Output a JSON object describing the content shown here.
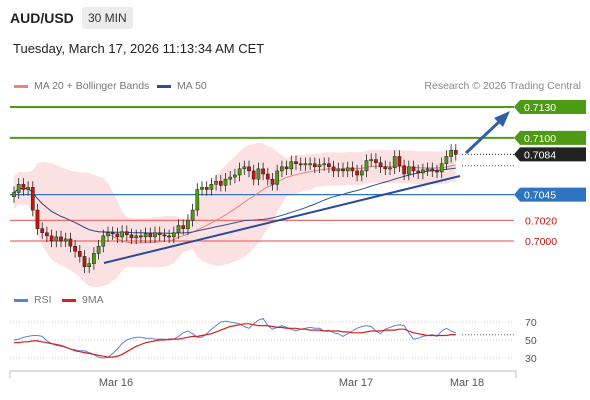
{
  "header": {
    "symbol": "AUD/USD",
    "timeframe": "30 MIN",
    "timestamp": "Tuesday, March 17, 2026 11:13:34 AM CET"
  },
  "legend": {
    "ma20_label": "MA 20 + Bollinger Bands",
    "ma50_label": "MA 50",
    "credit": "Research © 2026 Trading Central"
  },
  "rsi_legend": {
    "rsi_label": "RSI",
    "ma_label": "9MA"
  },
  "colors": {
    "bullish": "#4f9a14",
    "bearish": "#c4140c",
    "ma20": "#f0807f",
    "ma50": "#2e4f8e",
    "bands_fill": "#fbe1e1",
    "support": "#2e74c0",
    "target": "#4f9a14",
    "stop": "#ef6e6e",
    "current": "#222222",
    "rsi": "#5b82d6",
    "rsi_ma": "#d61f1f"
  },
  "chart_data": {
    "type": "candlestick",
    "price_levels": [
      {
        "value": 0.713,
        "label": "0.7130",
        "kind": "target"
      },
      {
        "value": 0.71,
        "label": "0.7100",
        "kind": "target"
      },
      {
        "value": 0.7084,
        "label": "0.7084",
        "kind": "current"
      },
      {
        "value": 0.7045,
        "label": "0.7045",
        "kind": "pivot"
      },
      {
        "value": 0.702,
        "label": "0.7020",
        "kind": "support"
      },
      {
        "value": 0.7,
        "label": "0.7000",
        "kind": "support"
      }
    ],
    "x_ticks": [
      "Mar 16",
      "Mar 17",
      "Mar 18"
    ],
    "rsi_ticks": [
      70,
      50,
      30
    ],
    "bar_count": 95,
    "closes": [
      0.7047,
      0.7055,
      0.705,
      0.7052,
      0.703,
      0.7012,
      0.7008,
      0.7005,
      0.7,
      0.7004,
      0.7,
      0.7002,
      0.6995,
      0.699,
      0.6985,
      0.6975,
      0.6978,
      0.6988,
      0.6995,
      0.7005,
      0.7008,
      0.7007,
      0.7004,
      0.7009,
      0.7006,
      0.7003,
      0.7005,
      0.7004,
      0.7007,
      0.7004,
      0.7008,
      0.7006,
      0.7005,
      0.7004,
      0.7008,
      0.7015,
      0.7012,
      0.702,
      0.703,
      0.705,
      0.7052,
      0.705,
      0.7055,
      0.7058,
      0.7054,
      0.706,
      0.7062,
      0.7064,
      0.707,
      0.7072,
      0.7068,
      0.706,
      0.707,
      0.7065,
      0.706,
      0.7055,
      0.7068,
      0.7072,
      0.707,
      0.7077,
      0.7075,
      0.7074,
      0.7075,
      0.7075,
      0.7072,
      0.7074,
      0.7075,
      0.7072,
      0.7068,
      0.707,
      0.7068,
      0.7071,
      0.7068,
      0.7064,
      0.7068,
      0.7078,
      0.7079,
      0.7076,
      0.7072,
      0.707,
      0.7071,
      0.7082,
      0.7073,
      0.7065,
      0.7072,
      0.7068,
      0.7066,
      0.7069,
      0.707,
      0.7068,
      0.7067,
      0.7075,
      0.7082,
      0.7088,
      0.7084
    ],
    "rsi": [
      50,
      51,
      53,
      54,
      55,
      55,
      54,
      49,
      46,
      44,
      43,
      42,
      40,
      39,
      38,
      38,
      36,
      34,
      31,
      30,
      31,
      35,
      40,
      46,
      50,
      52,
      53,
      53,
      52,
      52,
      51,
      51,
      51,
      50,
      51,
      54,
      58,
      60,
      57,
      53,
      53,
      57,
      62,
      66,
      70,
      71,
      70,
      69,
      68,
      65,
      63,
      68,
      72,
      74,
      66,
      62,
      64,
      66,
      64,
      62,
      60,
      62,
      63,
      64,
      63,
      63,
      60,
      61,
      58,
      57,
      54,
      57,
      60,
      63,
      65,
      66,
      65,
      60,
      57,
      62,
      64,
      66,
      67,
      66,
      58,
      51,
      52,
      54,
      55,
      56,
      54,
      60,
      63,
      60,
      58
    ],
    "rsi_ma": [
      47,
      47,
      48,
      48,
      49,
      49,
      48,
      47,
      46,
      45,
      44,
      42,
      40,
      38,
      37,
      36,
      35,
      34,
      33,
      32,
      31,
      31,
      32,
      34,
      37,
      40,
      43,
      45,
      47,
      48,
      49,
      50,
      50,
      51,
      51,
      51,
      52,
      53,
      54,
      54,
      55,
      56,
      57,
      59,
      61,
      63,
      65,
      66,
      67,
      68,
      68,
      67,
      66,
      66,
      66,
      65,
      64,
      64,
      63,
      63,
      63,
      62,
      62,
      61,
      61,
      61,
      60,
      60,
      60,
      60,
      59,
      59,
      58,
      58,
      58,
      59,
      60,
      60,
      60,
      61,
      61,
      61,
      62,
      62,
      60,
      58,
      57,
      56,
      55,
      55,
      55,
      55,
      55,
      56,
      56
    ]
  }
}
